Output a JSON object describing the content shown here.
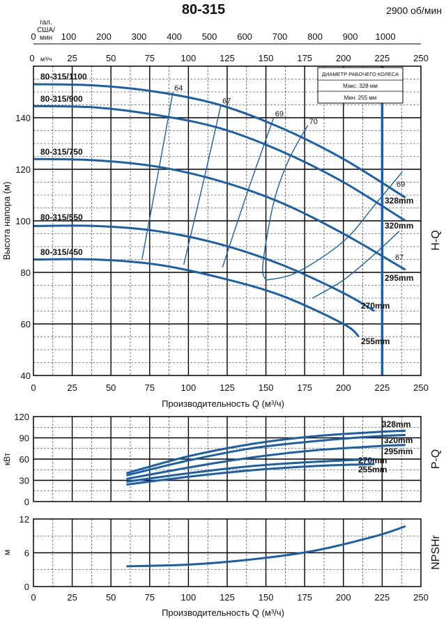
{
  "header": {
    "title": "80-315",
    "speed": "2900 об/мин",
    "gpm_unit": "гал. США/ мин",
    "m3h_unit": "м³/ч"
  },
  "chart_data": [
    {
      "id": "hq",
      "type": "line",
      "ylabel": "Высота напора (м)",
      "xlabel": "Производительность Q (м³/ч)",
      "side_label": "H-Q",
      "xlim": [
        0,
        250
      ],
      "ylim": [
        40,
        160
      ],
      "x_ticks": [
        "0",
        "25",
        "50",
        "75",
        "100",
        "125",
        "150",
        "175",
        "200",
        "225",
        "250"
      ],
      "y_ticks": [
        "40",
        "60",
        "80",
        "100",
        "120",
        "140"
      ],
      "gpm_ticks": [
        "0",
        "100",
        "200",
        "300",
        "400",
        "500",
        "600",
        "700",
        "800",
        "900",
        "1000"
      ],
      "top_m3h_ticks": [
        "0",
        "25",
        "50",
        "75",
        "100",
        "125",
        "150",
        "175",
        "200",
        "225",
        "250"
      ],
      "grid": true,
      "series": [
        {
          "name": "328mm",
          "x": [
            0,
            40,
            80,
            120,
            160,
            200,
            240
          ],
          "y": [
            153,
            152.5,
            150,
            145,
            136,
            124,
            109
          ]
        },
        {
          "name": "320mm",
          "x": [
            0,
            40,
            80,
            120,
            160,
            200,
            240
          ],
          "y": [
            144.5,
            144,
            141,
            136,
            127,
            115,
            100
          ]
        },
        {
          "name": "295mm",
          "x": [
            0,
            40,
            80,
            120,
            160,
            200,
            240
          ],
          "y": [
            124,
            123.5,
            121,
            115.5,
            107,
            95,
            81
          ]
        },
        {
          "name": "270mm",
          "x": [
            0,
            40,
            80,
            120,
            160,
            200,
            220
          ],
          "y": [
            98,
            98,
            96,
            91,
            83,
            72,
            65
          ]
        },
        {
          "name": "255mm",
          "x": [
            0,
            40,
            80,
            120,
            160,
            200,
            210
          ],
          "y": [
            85,
            85,
            83,
            78,
            71,
            60,
            55
          ]
        }
      ],
      "model_labels": [
        "80-315/1100",
        "80-315/900",
        "80-315/750",
        "80-315/550",
        "80-315/450"
      ],
      "efficiency": [
        {
          "label": "64",
          "x": [
            70,
            80,
            90
          ],
          "y": [
            85,
            117,
            150
          ]
        },
        {
          "label": "67",
          "x": [
            97,
            110,
            121
          ],
          "y": [
            83,
            116,
            145
          ]
        },
        {
          "label": "69",
          "x": [
            122,
            138,
            155
          ],
          "y": [
            82,
            111,
            140
          ]
        },
        {
          "label": "70",
          "x": [
            150,
            148,
            155,
            165,
            177
          ],
          "y": [
            77,
            83,
            107,
            124,
            137
          ]
        },
        {
          "label": "",
          "x": [
            150,
            170,
            200,
            220,
            238
          ],
          "y": [
            77,
            80,
            92,
            106,
            119
          ]
        },
        {
          "label": "",
          "x": [
            180,
            200,
            220,
            236
          ],
          "y": [
            70,
            77,
            87,
            96
          ]
        }
      ],
      "efficiency_side_labels": [
        "69",
        "67"
      ],
      "operating_line_x": 225,
      "legend_box": {
        "title": "ДИАМЕТР РАБОЧЕГО КОЛЕСА",
        "max": "Макс. 328 мм",
        "min": "Мин. 255 мм"
      }
    },
    {
      "id": "pq",
      "type": "line",
      "ylabel": "кВт",
      "side_label": "P-Q",
      "xlim": [
        0,
        250
      ],
      "ylim": [
        0,
        120
      ],
      "y_ticks": [
        "0",
        "30",
        "60",
        "90",
        "120"
      ],
      "grid": true,
      "series": [
        {
          "name": "328mm",
          "x": [
            60,
            100,
            140,
            180,
            220,
            240
          ],
          "y": [
            40,
            64,
            81,
            92,
            98,
            100
          ]
        },
        {
          "name": "320mm",
          "x": [
            60,
            100,
            140,
            180,
            220,
            240
          ],
          "y": [
            37,
            58,
            75,
            85,
            92,
            94
          ]
        },
        {
          "name": "295mm",
          "x": [
            60,
            100,
            140,
            180,
            220,
            240
          ],
          "y": [
            32,
            48,
            62,
            72,
            78,
            80
          ]
        },
        {
          "name": "270mm",
          "x": [
            60,
            100,
            140,
            180,
            220
          ],
          "y": [
            28,
            40,
            50,
            56,
            60
          ]
        },
        {
          "name": "255mm",
          "x": [
            60,
            100,
            140,
            180,
            220
          ],
          "y": [
            24,
            35,
            44,
            50,
            53
          ]
        }
      ]
    },
    {
      "id": "npsh",
      "type": "line",
      "ylabel": "м",
      "side_label": "NPSHr",
      "xlabel": "Производительность Q (м³/ч)",
      "xlim": [
        0,
        250
      ],
      "ylim": [
        0,
        12
      ],
      "x_ticks": [
        "0",
        "25",
        "50",
        "75",
        "100",
        "125",
        "150",
        "175",
        "200",
        "225",
        "250"
      ],
      "y_ticks": [
        "0",
        "6",
        "12"
      ],
      "grid": true,
      "series": [
        {
          "name": "",
          "x": [
            60,
            100,
            140,
            180,
            220,
            240
          ],
          "y": [
            3.6,
            3.9,
            4.8,
            6.3,
            8.9,
            10.7
          ]
        }
      ]
    }
  ]
}
